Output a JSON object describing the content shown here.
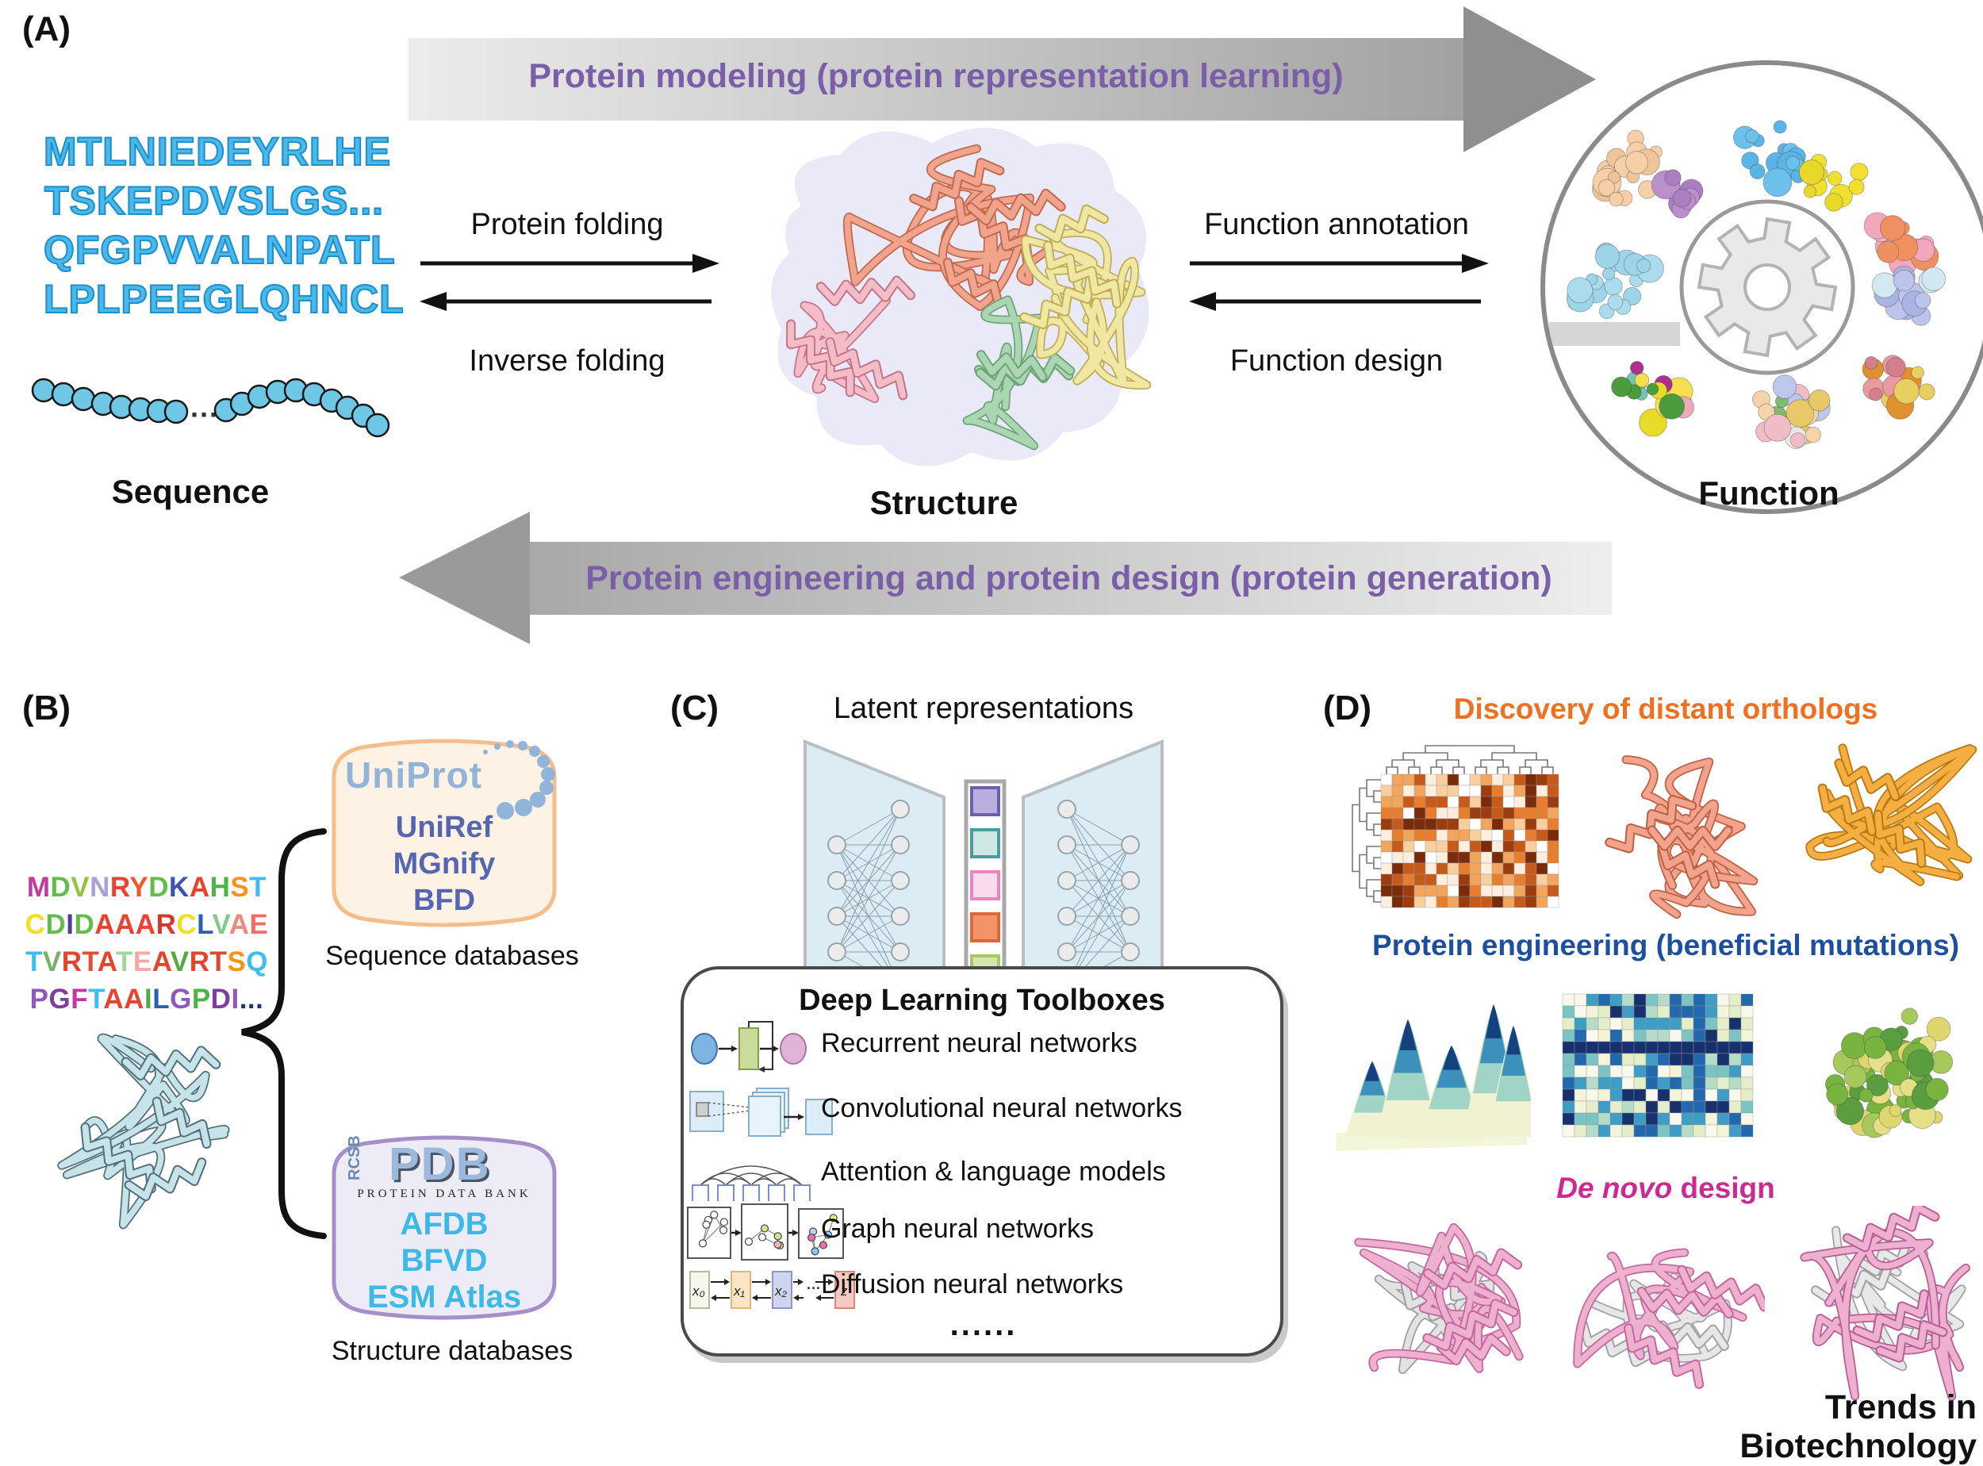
{
  "colors": {
    "banner_text": "#7a5fa8",
    "panelA_sequence": "#49b8ea",
    "uniprot_logo": "#92b4d8",
    "uniprot_items": "#5565b2",
    "pdb_logo": "#9cb8da",
    "pdb_items": "#3db9e7",
    "ortholog_title": "#ee7021",
    "mutation_title": "#1c4f9e",
    "denovo_title": "#cc2a93"
  },
  "panelA": {
    "label": "(A)",
    "top_banner": "Protein modeling (protein representation learning)",
    "bottom_banner": "Protein engineering and protein design (protein generation)",
    "sequence_lines": [
      "MTLNIEDEYRLHE",
      "TSKEPDVSLGS...",
      "QFGPVVALNPATL",
      "LPLPEEGLQHNCL"
    ],
    "beads_dots": "···",
    "sequence_label": "Sequence",
    "structure_label": "Structure",
    "function_label": "Function",
    "protein_folding": "Protein folding",
    "inverse_folding": "Inverse folding",
    "function_annotation": "Function annotation",
    "function_design": "Function design"
  },
  "panelB": {
    "label": "(B)",
    "sequence_lines": [
      "MDVNRYDKAHST",
      "CDIDAAARCLVAE",
      "TVRTATEAVRTSQ",
      "PGFTAAILGPDI..."
    ],
    "sequence_colors": [
      [
        "#c13a9e",
        "#62bd4a",
        "#8fc63d",
        "#a9a0d8",
        "#e8432e",
        "#f05a28",
        "#62bd4a",
        "#3a53b4",
        "#e8432e",
        "#4db448",
        "#f7941d",
        "#3fbdf0"
      ],
      [
        "#f0e020",
        "#62bd4a",
        "#4b3f9e",
        "#62bd4a",
        "#e8432e",
        "#e8432e",
        "#e8432e",
        "#d43a2a",
        "#f0e020",
        "#2e5fb7",
        "#84c98f",
        "#f08a7a",
        "#f26d64"
      ],
      [
        "#3fbdf0",
        "#7ab06a",
        "#e8432e",
        "#e05030",
        "#e8432e",
        "#a5d6a0",
        "#f4a9a0",
        "#e8432e",
        "#56aa46",
        "#e8432e",
        "#d84a30",
        "#f7941d",
        "#3fbdf0"
      ],
      [
        "#8f58bb",
        "#7d3f9e",
        "#c13a9e",
        "#3fbdf0",
        "#e8432e",
        "#e8432e",
        "#56aa46",
        "#2e5fb7",
        "#8f58bb",
        "#4db448",
        "#7d3f9e",
        "#8f58bb",
        "#20356e",
        "#20356e",
        "#20356e"
      ]
    ],
    "uniprot_logo": "UniProt",
    "uniprot_items": [
      "UniRef",
      "MGnify",
      "BFD"
    ],
    "sequence_db_caption": "Sequence databases",
    "pdb_rcsb": "RCSB",
    "pdb_name": "PDB",
    "pdb_subtitle": "PROTEIN DATA BANK",
    "pdb_items": [
      "AFDB",
      "BFVD",
      "ESM Atlas"
    ],
    "structure_db_caption": "Structure databases"
  },
  "panelC": {
    "label": "(C)",
    "latent_title": "Latent representations",
    "toolbox_title": "Deep Learning Toolboxes",
    "toolbox_items": [
      "Recurrent neural networks",
      "Convolutional neural networks",
      "Attention & language models",
      "Graph neural networks",
      "Diffusion neural networks"
    ],
    "ellipsis": "......",
    "diffusion_labels": [
      "x₀",
      "x₁",
      "x₂",
      "z"
    ],
    "diffusion_dots": "···"
  },
  "panelD": {
    "label": "(D)",
    "row1_title": "Discovery of distant orthologs",
    "row2_title": "Protein engineering (beneficial mutations)",
    "row3_title_em": "De novo",
    "row3_title_rest": " design",
    "journal": "Trends in Biotechnology",
    "palettes": {
      "ortholog_heatmap": [
        "#fdeedd",
        "#f9cf9f",
        "#f2a55c",
        "#e67e2e",
        "#c65a1b",
        "#9c3d10",
        "#ffffff",
        "#7a2b0a"
      ],
      "mutation_heatmap": [
        "#f4f4d8",
        "#e4eec8",
        "#b4dcc8",
        "#7cc4c4",
        "#3f9cc4",
        "#2268ac",
        "#f8f8ec",
        "#16316e"
      ],
      "fitness_peaks": [
        "#f0f2d2",
        "#9fd4c6",
        "#3e90bc",
        "#16417f"
      ],
      "surface_protein": [
        "#e6df8a",
        "#ded66e",
        "#a6c95c",
        "#7ab440",
        "#5a9e3f"
      ]
    }
  }
}
